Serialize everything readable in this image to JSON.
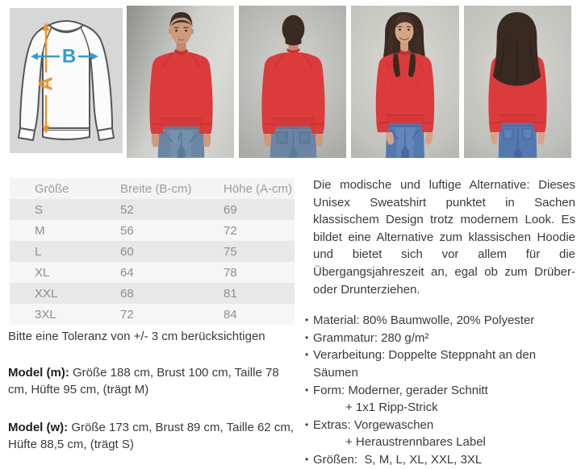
{
  "gallery": {
    "diagram": {
      "label_a": "A",
      "label_b": "B",
      "arrow_a_color": "#f0931d",
      "arrow_b_color": "#2a9fd4"
    },
    "photos": [
      {
        "name": "model-male-front"
      },
      {
        "name": "model-male-back"
      },
      {
        "name": "model-female-front"
      },
      {
        "name": "model-female-back"
      }
    ],
    "sweatshirt_color": "#dc3b3b"
  },
  "size_table": {
    "columns": [
      "Größe",
      "Breite (B-cm)",
      "Höhe (A-cm)"
    ],
    "rows": [
      [
        "S",
        "52",
        "69"
      ],
      [
        "M",
        "56",
        "72"
      ],
      [
        "L",
        "60",
        "75"
      ],
      [
        "XL",
        "64",
        "78"
      ],
      [
        "XXL",
        "68",
        "81"
      ],
      [
        "3XL",
        "72",
        "84"
      ]
    ]
  },
  "notes": {
    "tolerance": "Bitte eine Toleranz von +/- 3 cm berücksichtigen",
    "model_m_label": "Model (m):",
    "model_m_text": " Größe 188 cm, Brust 100 cm, Taille 78 cm, Hüfte 95 cm, (trägt M)",
    "model_w_label": "Model (w):",
    "model_w_text": " Größe 173 cm, Brust 89 cm, Taille 62 cm, Hüfte 88,5 cm, (trägt S)"
  },
  "description": {
    "paragraph": "Die modische und luftige Alternative: Dieses Unisex Sweatshirt punktet in Sachen klassischem Design trotz modernem Look. Es bildet eine Alternative zum klassischen Hoodie und bietet sich vor allem für die Übergangsjahreszeit an, egal ob zum Drüber- oder Drunterziehen.",
    "bullets": [
      {
        "text": "Material: 80% Baumwolle, 20% Polyester"
      },
      {
        "text": "Grammatur: 280 g/m²"
      },
      {
        "text": "Verarbeitung: Doppelte Steppnaht an den Säumen"
      },
      {
        "text": "Form: Moderner, gerader Schnitt",
        "sub": "+ 1x1 Ripp-Strick"
      },
      {
        "text": "Extras: Vorgewaschen",
        "sub": "+ Heraustrennbares Label"
      },
      {
        "text": "Größen:  S, M, L, XL, XXL, 3XL"
      }
    ]
  }
}
